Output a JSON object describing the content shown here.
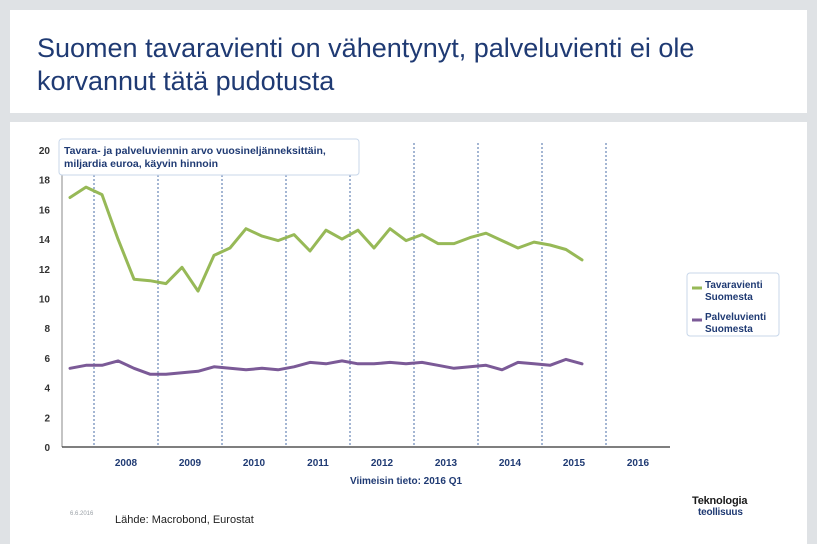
{
  "slide": {
    "title": "Suomen tavaravienti on vähentynyt, palveluvienti ei ole korvannut tätä pudotusta",
    "footer_date": "6.6.2016",
    "source": "Lähde: Macrobond, Eurostat",
    "logo_line1": "Teknologia",
    "logo_line2": "teollisuus"
  },
  "chart_data": {
    "type": "line",
    "title_lines": [
      "Tavara- ja palveluviennin arvo vuosineljänneksittäin,",
      "miljardia euroa, käyvin hinnoin"
    ],
    "xlabel": "Viimeisin tieto: 2016 Q1",
    "x_tick_labels": [
      "2008",
      "2009",
      "2010",
      "2011",
      "2012",
      "2013",
      "2014",
      "2015",
      "2016"
    ],
    "y_ticks": [
      0,
      2,
      4,
      6,
      8,
      10,
      12,
      14,
      16,
      18,
      20
    ],
    "ylim": [
      0,
      20
    ],
    "xlim": [
      "2007 Q3",
      "2016 Q4"
    ],
    "legend_position": "right",
    "grid": "vertical dashed lines at year boundaries",
    "x": [
      "2007 Q3",
      "2007 Q4",
      "2008 Q1",
      "2008 Q2",
      "2008 Q3",
      "2008 Q4",
      "2009 Q1",
      "2009 Q2",
      "2009 Q3",
      "2009 Q4",
      "2010 Q1",
      "2010 Q2",
      "2010 Q3",
      "2010 Q4",
      "2011 Q1",
      "2011 Q2",
      "2011 Q3",
      "2011 Q4",
      "2012 Q1",
      "2012 Q2",
      "2012 Q3",
      "2012 Q4",
      "2013 Q1",
      "2013 Q2",
      "2013 Q3",
      "2013 Q4",
      "2014 Q1",
      "2014 Q2",
      "2014 Q3",
      "2014 Q4",
      "2015 Q1",
      "2015 Q2",
      "2015 Q3",
      "2015 Q4",
      "2016 Q1"
    ],
    "series": [
      {
        "name": "Tavaravienti Suomesta",
        "color": "#97b957",
        "values": [
          16.8,
          17.5,
          17.0,
          14.0,
          11.3,
          11.2,
          11.0,
          12.1,
          10.5,
          12.9,
          13.4,
          14.7,
          14.2,
          13.9,
          14.3,
          13.2,
          14.6,
          14.0,
          14.6,
          13.4,
          14.7,
          13.9,
          14.3,
          13.7,
          13.7,
          14.1,
          14.4,
          13.9,
          13.4,
          13.8,
          13.6,
          13.3,
          12.6,
          null,
          null
        ]
      },
      {
        "name": "Palveluvienti Suomesta",
        "color": "#7b5a97",
        "values": [
          5.3,
          5.5,
          5.5,
          5.8,
          5.3,
          4.9,
          4.9,
          5.0,
          5.1,
          5.4,
          5.3,
          5.2,
          5.3,
          5.2,
          5.4,
          5.7,
          5.6,
          5.8,
          5.6,
          5.6,
          5.7,
          5.6,
          5.7,
          5.5,
          5.3,
          5.4,
          5.5,
          5.2,
          5.7,
          5.6,
          5.5,
          5.9,
          5.6,
          null,
          null
        ]
      }
    ]
  }
}
